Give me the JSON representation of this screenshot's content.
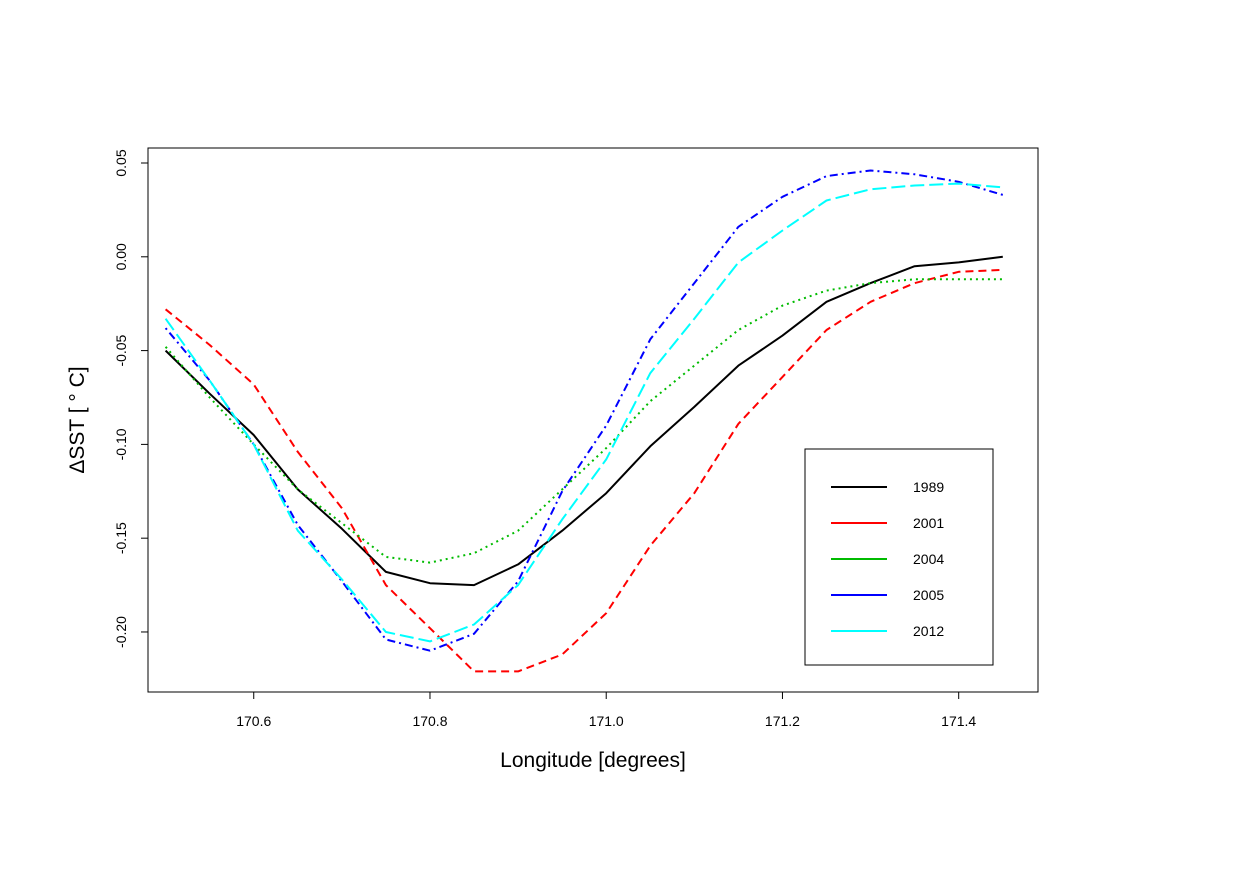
{
  "chart_data": {
    "type": "line",
    "title": "",
    "xlabel": "Longitude [degrees]",
    "ylabel": "ΔSST [ ° C]",
    "xlim": [
      170.48,
      171.49
    ],
    "ylim": [
      -0.232,
      0.058
    ],
    "xticks": [
      170.6,
      170.8,
      171.0,
      171.2,
      171.4
    ],
    "xtick_labels": [
      "170.6",
      "170.8",
      "171.0",
      "171.2",
      "171.4"
    ],
    "yticks": [
      0.05,
      0.0,
      -0.05,
      -0.1,
      -0.15,
      -0.2
    ],
    "ytick_labels": [
      "0.05",
      "0.00",
      "-0.05",
      "-0.10",
      "-0.15",
      "-0.20"
    ],
    "grid": false,
    "legend_position": "bottom-right",
    "x": [
      170.5,
      170.55,
      170.6,
      170.65,
      170.7,
      170.75,
      170.8,
      170.85,
      170.9,
      170.95,
      171.0,
      171.05,
      171.1,
      171.15,
      171.2,
      171.25,
      171.3,
      171.35,
      171.4,
      171.45
    ],
    "series": [
      {
        "name": "1989",
        "color": "#000000",
        "dash": "solid",
        "values": [
          -0.05,
          -0.073,
          -0.095,
          -0.124,
          -0.145,
          -0.168,
          -0.174,
          -0.175,
          -0.164,
          -0.146,
          -0.126,
          -0.101,
          -0.08,
          -0.058,
          -0.042,
          -0.024,
          -0.014,
          -0.005,
          -0.003,
          0.0
        ]
      },
      {
        "name": "2001",
        "color": "#ff0000",
        "dash": "dashed",
        "values": [
          -0.028,
          -0.047,
          -0.068,
          -0.104,
          -0.134,
          -0.175,
          -0.198,
          -0.221,
          -0.221,
          -0.212,
          -0.19,
          -0.154,
          -0.126,
          -0.089,
          -0.064,
          -0.039,
          -0.024,
          -0.014,
          -0.008,
          -0.007
        ]
      },
      {
        "name": "2004",
        "color": "#00bb00",
        "dash": "dotted",
        "values": [
          -0.048,
          -0.075,
          -0.1,
          -0.124,
          -0.142,
          -0.16,
          -0.163,
          -0.158,
          -0.146,
          -0.124,
          -0.102,
          -0.077,
          -0.058,
          -0.039,
          -0.026,
          -0.018,
          -0.014,
          -0.012,
          -0.012,
          -0.012
        ]
      },
      {
        "name": "2005",
        "color": "#0000ff",
        "dash": "dotdash",
        "values": [
          -0.038,
          -0.066,
          -0.1,
          -0.143,
          -0.173,
          -0.204,
          -0.21,
          -0.201,
          -0.173,
          -0.125,
          -0.09,
          -0.044,
          -0.014,
          0.016,
          0.032,
          0.043,
          0.046,
          0.044,
          0.04,
          0.033
        ]
      },
      {
        "name": "2012",
        "color": "#00ffff",
        "dash": "longdash",
        "values": [
          -0.033,
          -0.066,
          -0.1,
          -0.146,
          -0.172,
          -0.2,
          -0.205,
          -0.196,
          -0.175,
          -0.14,
          -0.108,
          -0.062,
          -0.033,
          -0.003,
          0.014,
          0.03,
          0.036,
          0.038,
          0.039,
          0.037
        ]
      }
    ]
  }
}
